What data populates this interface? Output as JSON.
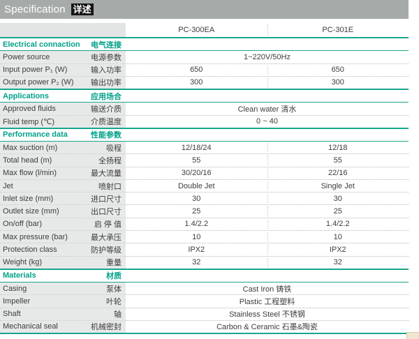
{
  "title": {
    "en": "Specification",
    "zh": "详述"
  },
  "columns": [
    "PC-300EA",
    "PC-301E"
  ],
  "sections": [
    {
      "header_en": "Electrical connaction",
      "header_zh": "电气连接",
      "rows": [
        {
          "en": "Power source",
          "zh": "电源参数",
          "span": "1~220V/50Hz"
        },
        {
          "en": "Input power P₁ (W)",
          "zh": "输入功率",
          "v1": "650",
          "v2": "650"
        },
        {
          "en": "Output power P₂ (W)",
          "zh": "输出功率",
          "v1": "300",
          "v2": "300"
        }
      ]
    },
    {
      "header_en": "Applications",
      "header_zh": "应用场合",
      "rows": [
        {
          "en": "Approved fluids",
          "zh": "输送介质",
          "span": "Clean water 清水"
        },
        {
          "en": "Fluid temp (℃)",
          "zh": "介质温度",
          "span": "0 ~ 40"
        }
      ]
    },
    {
      "header_en": "Performance data",
      "header_zh": "性能参数",
      "rows": [
        {
          "en": "Max suction (m)",
          "zh": "吸程",
          "v1": "12/18/24",
          "v2": "12/18"
        },
        {
          "en": "Total head (m)",
          "zh": "全扬程",
          "v1": "55",
          "v2": "55"
        },
        {
          "en": "Max flow (l/min)",
          "zh": "最大流量",
          "v1": "30/20/16",
          "v2": "22/16"
        },
        {
          "en": "Jet",
          "zh": "喷射口",
          "v1": "Double Jet",
          "v2": "Single Jet"
        },
        {
          "en": "Inlet size (mm)",
          "zh": "进口尺寸",
          "v1": "30",
          "v2": "30"
        },
        {
          "en": "Outlet size (mm)",
          "zh": "出口尺寸",
          "v1": "25",
          "v2": "25"
        },
        {
          "en": "On/off (bar)",
          "zh": "启 停 值",
          "v1": "1.4/2.2",
          "v2": "1.4/2.2"
        },
        {
          "en": "Max pressure (bar)",
          "zh": "最大承压",
          "v1": "10",
          "v2": "10"
        },
        {
          "en": "Protection class",
          "zh": "防护等级",
          "v1": "IPX2",
          "v2": "IPX2"
        },
        {
          "en": "Weight (kg)",
          "zh": "重量",
          "v1": "32",
          "v2": "32"
        }
      ]
    },
    {
      "header_en": "Materials",
      "header_zh": "材质",
      "rows": [
        {
          "en": "Casing",
          "zh": "泵体",
          "span": "Cast Iron 铸铁"
        },
        {
          "en": "Impeller",
          "zh": "叶轮",
          "span": "Plastic 工程塑料"
        },
        {
          "en": "Shaft",
          "zh": "轴",
          "span": "Stainless Steel 不锈钢"
        },
        {
          "en": "Mechanical seal",
          "zh": "机械密封",
          "span": "Carbon & Ceramic 石墨&陶瓷"
        }
      ]
    }
  ],
  "colors": {
    "accent_teal": "#17a78c",
    "section_text": "#00a189",
    "titlebar_gray": "#a6abaa",
    "label_bg": "#e7e8e8",
    "body_text": "#3c3c3c"
  }
}
